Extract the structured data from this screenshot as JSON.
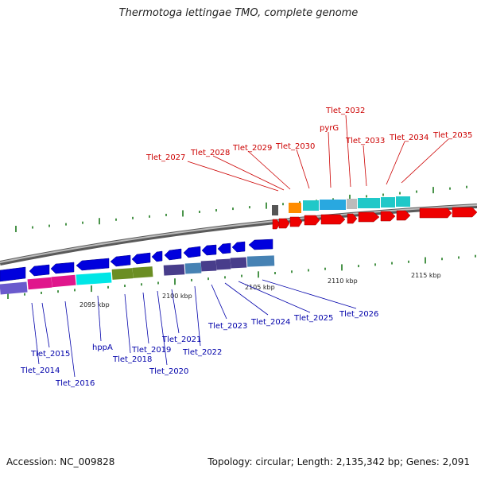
{
  "title": "Thermotoga lettingae TMO, complete genome",
  "footer": {
    "accession": "Accession: NC_009828",
    "topology": "Topology: circular; Length: 2,135,342 bp; Genes: 2,091"
  },
  "scale": {
    "labels": [
      "2095 kbp",
      "2100 kbp",
      "2105 kbp",
      "2110 kbp",
      "2115 kbp"
    ]
  },
  "colors": {
    "upper_label": "#cc0000",
    "lower_label": "#0000aa",
    "forward_cds": "#ee0000",
    "reverse_cds": "#0000dd",
    "tick": "#1d7a1d",
    "backbone": "#888888"
  },
  "upper_labels": [
    "Tlet_2027",
    "Tlet_2028",
    "Tlet_2029",
    "Tlet_2030",
    "pyrG",
    "Tlet_2032",
    "Tlet_2033",
    "Tlet_2034",
    "Tlet_2035"
  ],
  "lower_labels": [
    "Tlet_2014",
    "Tlet_2015",
    "Tlet_2016",
    "hppA",
    "Tlet_2018",
    "Tlet_2019",
    "Tlet_2020",
    "Tlet_2021",
    "Tlet_2022",
    "Tlet_2023",
    "Tlet_2024",
    "Tlet_2025",
    "Tlet_2026"
  ]
}
